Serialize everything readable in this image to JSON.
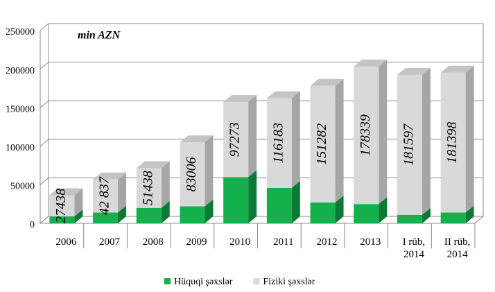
{
  "chart_data": {
    "type": "bar3d_stacked",
    "annotation": "min AZN",
    "categories": [
      "2006",
      "2007",
      "2008",
      "2009",
      "2010",
      "2011",
      "2012",
      "2013",
      "I rüb, 2014",
      "II rüb, 2014"
    ],
    "series": [
      {
        "name": "Hüquqi şəxslər",
        "color": "#14b04c",
        "values": [
          9000,
          14000,
          20000,
          22000,
          60000,
          46000,
          27000,
          25000,
          11000,
          14000
        ]
      },
      {
        "name": "Fiziki şəxslər",
        "color": "#d9d9d9",
        "values": [
          27438,
          42837,
          51438,
          83006,
          97273,
          116183,
          151282,
          178339,
          181597,
          181398
        ],
        "value_labels": [
          "27438",
          "42 837",
          "51438",
          "83006",
          "97273",
          "116183",
          "151282",
          "178339",
          "181597",
          "181398"
        ]
      }
    ],
    "ylim": [
      0,
      250000
    ],
    "yticks": [
      0,
      50000,
      100000,
      150000,
      200000,
      250000
    ],
    "grid": true,
    "legend": "bottom"
  }
}
